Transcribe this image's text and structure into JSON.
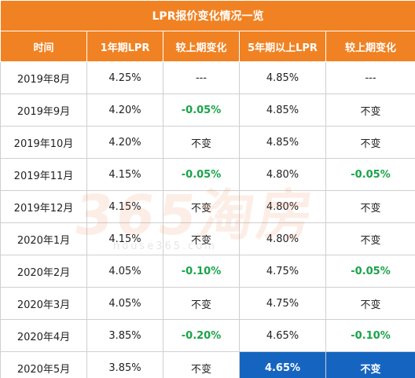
{
  "table": {
    "title": "LPR报价变化情况一览",
    "headers": [
      "时间",
      "1年期LPR",
      "较上期变化",
      "5年期以上LPR",
      "较上期变化"
    ],
    "rows": [
      [
        "2019年8月",
        "4.25%",
        "---",
        "4.85%",
        "---"
      ],
      [
        "2019年9月",
        "4.20%",
        "-0.05%",
        "4.85%",
        "不变"
      ],
      [
        "2019年10月",
        "4.20%",
        "不变",
        "4.85%",
        "不变"
      ],
      [
        "2019年11月",
        "4.15%",
        "-0.05%",
        "4.80%",
        "-0.05%"
      ],
      [
        "2019年12月",
        "4.15%",
        "不变",
        "4.80%",
        "不变"
      ],
      [
        "2020年1月",
        "4.15%",
        "不变",
        "4.80%",
        "不变"
      ],
      [
        "2020年2月",
        "4.05%",
        "-0.10%",
        "4.75%",
        "-0.05%"
      ],
      [
        "2020年3月",
        "4.05%",
        "不变",
        "4.75%",
        "不变"
      ],
      [
        "2020年4月",
        "3.85%",
        "-0.20%",
        "4.65%",
        "-0.10%"
      ],
      [
        "2020年5月",
        "3.85%",
        "不变",
        "4.65%",
        "不变"
      ]
    ]
  },
  "watermark": {
    "logo_text": "365淘房",
    "url_text": "house365.com"
  },
  "colors": {
    "header_bg": "#f08223",
    "negative_text": "#1aa34a",
    "highlight_bg": "#1565c0"
  }
}
